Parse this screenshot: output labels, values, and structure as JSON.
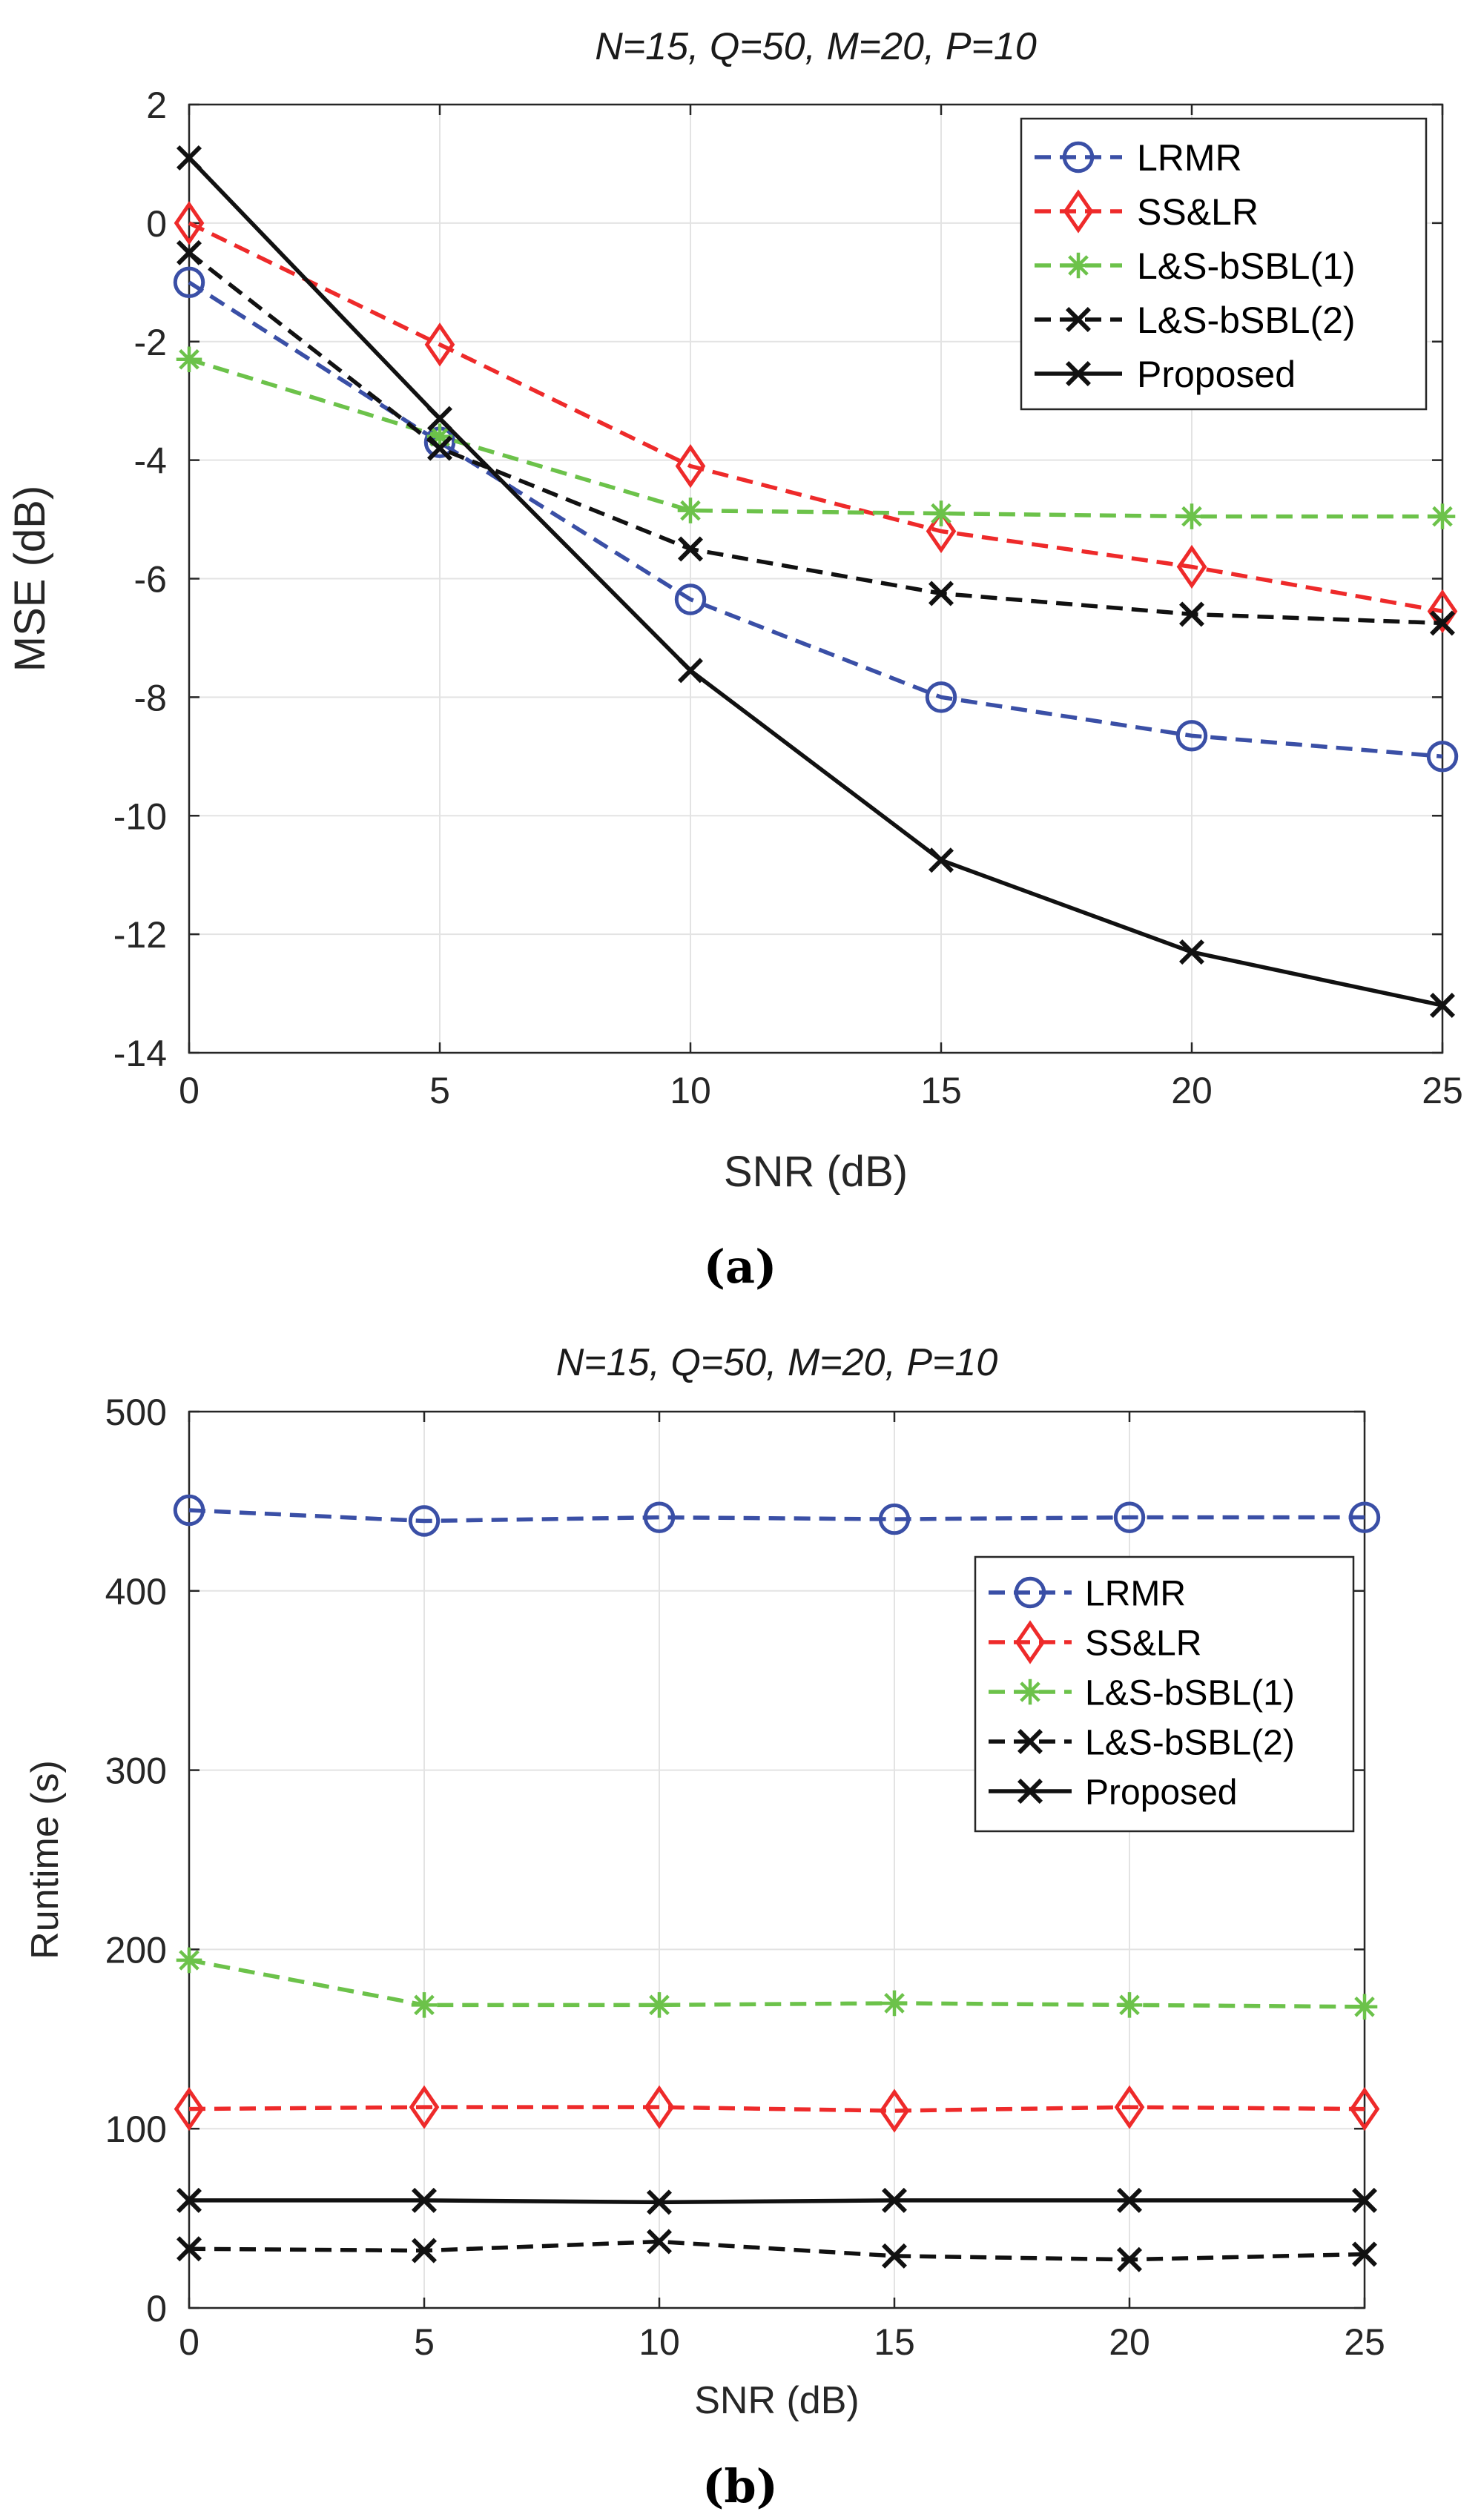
{
  "chart_data": [
    {
      "type": "line",
      "panel_label": "(a)",
      "title": "N=15, Q=50, M=20, P=10",
      "xlabel": "SNR (dB)",
      "ylabel": "MSE (dB)",
      "x": [
        0,
        5,
        10,
        15,
        20,
        25
      ],
      "xlim": [
        0,
        25
      ],
      "ylim": [
        -14,
        2
      ],
      "xticks": [
        0,
        5,
        10,
        15,
        20,
        25
      ],
      "yticks": [
        -14,
        -12,
        -10,
        -8,
        -6,
        -4,
        -2,
        0,
        2
      ],
      "grid": true,
      "legend_position": "top-right",
      "series": [
        {
          "name": "LRMR",
          "color": "#3a4fa6",
          "dash": "dashed",
          "marker": "circle",
          "values": [
            -1.0,
            -3.7,
            -6.35,
            -8.0,
            -8.65,
            -9.0
          ]
        },
        {
          "name": "SS&LR",
          "color": "#ee2a2a",
          "dash": "dashed",
          "marker": "diamond",
          "values": [
            0.0,
            -2.05,
            -4.1,
            -5.2,
            -5.8,
            -6.55
          ]
        },
        {
          "name": "L&S-bSBL(1)",
          "color": "#6cc24a",
          "dash": "dashed",
          "marker": "asterisk",
          "values": [
            -2.3,
            -3.6,
            -4.85,
            -4.9,
            -4.95,
            -4.95
          ]
        },
        {
          "name": "L&S-bSBL(2)",
          "color": "#111111",
          "dash": "dashed",
          "marker": "x",
          "values": [
            -0.5,
            -3.8,
            -5.5,
            -6.25,
            -6.6,
            -6.75
          ]
        },
        {
          "name": "Proposed",
          "color": "#111111",
          "dash": "solid",
          "marker": "x",
          "values": [
            1.1,
            -3.3,
            -7.55,
            -10.75,
            -12.3,
            -13.2
          ]
        }
      ]
    },
    {
      "type": "line",
      "panel_label": "(b)",
      "title": "N=15, Q=50, M=20, P=10",
      "xlabel": "SNR (dB)",
      "ylabel": "Runtime (s)",
      "x": [
        0,
        5,
        10,
        15,
        20,
        25
      ],
      "xlim": [
        0,
        25
      ],
      "ylim": [
        0,
        500
      ],
      "xticks": [
        0,
        5,
        10,
        15,
        20,
        25
      ],
      "yticks": [
        0,
        100,
        200,
        300,
        400,
        500
      ],
      "grid": true,
      "legend_position": "right",
      "series": [
        {
          "name": "LRMR",
          "color": "#3a4fa6",
          "dash": "dashed",
          "marker": "circle",
          "values": [
            445,
            439,
            441,
            440,
            441,
            441
          ]
        },
        {
          "name": "SS&LR",
          "color": "#ee2a2a",
          "dash": "dashed",
          "marker": "diamond",
          "values": [
            111,
            112,
            112,
            110,
            112,
            111
          ]
        },
        {
          "name": "L&S-bSBL(1)",
          "color": "#6cc24a",
          "dash": "dashed",
          "marker": "asterisk",
          "values": [
            194,
            169,
            169,
            170,
            169,
            168
          ]
        },
        {
          "name": "L&S-bSBL(2)",
          "color": "#111111",
          "dash": "dashed",
          "marker": "x",
          "values": [
            33,
            32,
            37,
            29,
            27,
            30
          ]
        },
        {
          "name": "Proposed",
          "color": "#111111",
          "dash": "solid",
          "marker": "x",
          "values": [
            60,
            60,
            59,
            60,
            60,
            60
          ]
        }
      ]
    }
  ]
}
